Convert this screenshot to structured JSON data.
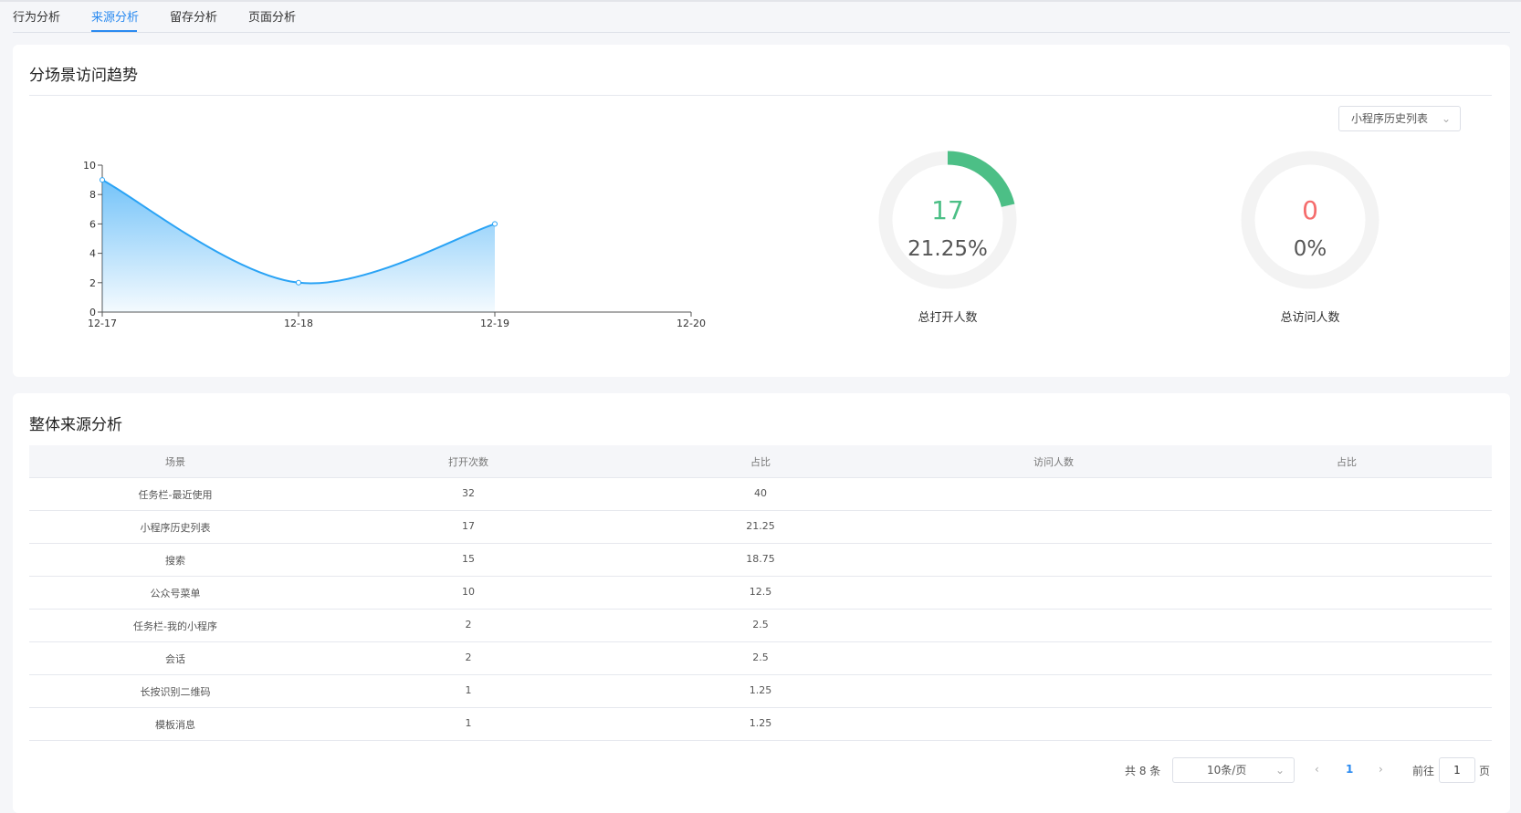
{
  "tabs": [
    "行为分析",
    "来源分析",
    "留存分析",
    "页面分析"
  ],
  "trend": {
    "title": "分场景访问趋势",
    "dropdown": "小程序历史列表"
  },
  "chart_data": {
    "type": "area",
    "x": [
      "12-17",
      "12-18",
      "12-19",
      "12-20"
    ],
    "values": [
      9,
      2,
      6,
      null
    ],
    "ylim": [
      0,
      10
    ],
    "yticks": [
      0,
      2,
      4,
      6,
      8,
      10
    ],
    "color": "#2aa3f5"
  },
  "gauges": [
    {
      "value": 17,
      "percent": {
        "value": 21.25,
        "label": "21.25%"
      },
      "label": "总打开人数",
      "color": "#4cbf86"
    },
    {
      "value": 0,
      "percent": {
        "value": 0,
        "label": "0%"
      },
      "label": "总访问人数",
      "color": "#f56c6c"
    }
  ],
  "source": {
    "title": "整体来源分析",
    "header": [
      "场景",
      "打开次数",
      "占比",
      "访问人数",
      "占比"
    ],
    "rows": [
      [
        "任务栏-最近使用",
        32,
        40
      ],
      [
        "小程序历史列表",
        17,
        21.25
      ],
      [
        "搜索",
        15,
        18.75
      ],
      [
        "公众号菜单",
        10,
        12.5
      ],
      [
        "任务栏-我的小程序",
        2,
        2.5
      ],
      [
        "会话",
        2,
        2.5
      ],
      [
        "长按识别二维码",
        1,
        1.25
      ],
      [
        "模板消息",
        1,
        1.25
      ]
    ]
  },
  "pagination": {
    "total_label": "共 8 条",
    "page_size": "10条/页",
    "current_page": 1,
    "goto_label": "前往",
    "goto_value": 1,
    "page_suffix": "页"
  }
}
